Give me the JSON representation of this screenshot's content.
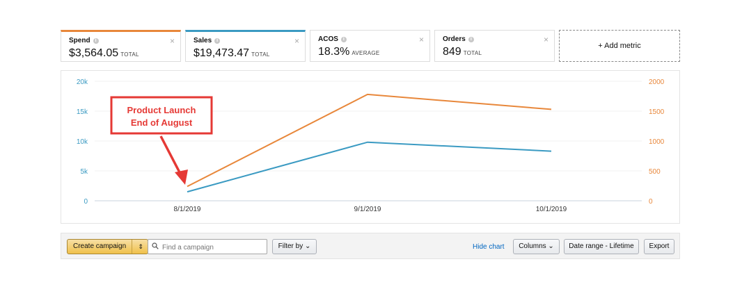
{
  "metrics": [
    {
      "name": "Spend",
      "value": "$3,564.05",
      "sub": "TOTAL",
      "color": "#e8873a"
    },
    {
      "name": "Sales",
      "value": "$19,473.47",
      "sub": "TOTAL",
      "color": "#3a9ac2"
    },
    {
      "name": "ACOS",
      "value": "18.3%",
      "sub": "AVERAGE"
    },
    {
      "name": "Orders",
      "value": "849",
      "sub": "TOTAL"
    }
  ],
  "add_metric_label": "+ Add metric",
  "close_glyph": "×",
  "info_glyph": "i",
  "chart_data": {
    "type": "line",
    "x": [
      "8/1/2019",
      "9/1/2019",
      "10/1/2019"
    ],
    "series": [
      {
        "name": "Sales",
        "axis": "left",
        "color": "#3a9ac2",
        "values": [
          1500,
          9800,
          8300
        ]
      },
      {
        "name": "Spend",
        "axis": "right",
        "color": "#e8873a",
        "values": [
          240,
          1780,
          1530
        ]
      }
    ],
    "y_left": {
      "ticks": [
        "0",
        "5k",
        "10k",
        "15k",
        "20k"
      ],
      "range": [
        0,
        20000
      ],
      "color": "#3a9ac2"
    },
    "y_right": {
      "ticks": [
        "0",
        "500",
        "1000",
        "1500",
        "2000"
      ],
      "range": [
        0,
        2000
      ],
      "color": "#e8873a"
    },
    "annotation": {
      "lines": [
        "Product Launch",
        "End of August"
      ],
      "color": "#e53935"
    },
    "grid": true
  },
  "toolbar": {
    "create_label": "Create campaign",
    "create_arrow": "⇕",
    "search_placeholder": "Find a campaign",
    "filter_label": "Filter by ⌄",
    "hide_chart_label": "Hide chart",
    "columns_label": "Columns ⌄",
    "range_label": "Date range - Lifetime",
    "export_label": "Export"
  }
}
